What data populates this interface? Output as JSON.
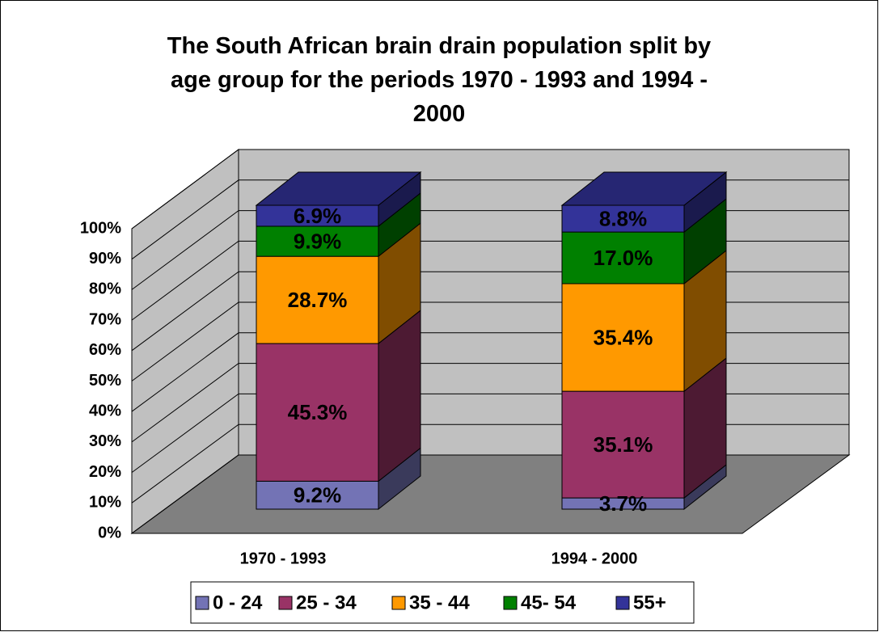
{
  "chart_data": {
    "type": "bar3d_stacked",
    "title": "The South African brain drain population split by age group for the periods 1970 - 1993 and 1994 - 2000",
    "categories": [
      "1970 - 1993",
      "1994 - 2000"
    ],
    "series": [
      {
        "name": "0 - 24",
        "color": "#7373b5",
        "values": [
          9.2,
          3.7
        ],
        "value_labels": [
          "9.2%",
          "3.7%"
        ]
      },
      {
        "name": "25 - 34",
        "color": "#993366",
        "values": [
          45.3,
          35.1
        ],
        "value_labels": [
          "45.3%",
          "35.1%"
        ]
      },
      {
        "name": "35 - 44",
        "color": "#ff9900",
        "values": [
          28.7,
          35.4
        ],
        "value_labels": [
          "28.7%",
          "35.4%"
        ]
      },
      {
        "name": "45- 54",
        "color": "#008000",
        "values": [
          9.9,
          17.0
        ],
        "value_labels": [
          "9.9%",
          "17.0%"
        ]
      },
      {
        "name": "55+",
        "color": "#333399",
        "values": [
          6.9,
          8.8
        ],
        "value_labels": [
          "6.9%",
          "8.8%"
        ]
      }
    ],
    "ylim": [
      0,
      100
    ],
    "yticks": [
      {
        "value": 0,
        "label": "0%"
      },
      {
        "value": 10,
        "label": "10%"
      },
      {
        "value": 20,
        "label": "20%"
      },
      {
        "value": 30,
        "label": "30%"
      },
      {
        "value": 40,
        "label": "40%"
      },
      {
        "value": 50,
        "label": "50%"
      },
      {
        "value": 60,
        "label": "60%"
      },
      {
        "value": 70,
        "label": "70%"
      },
      {
        "value": 80,
        "label": "80%"
      },
      {
        "value": 90,
        "label": "90%"
      },
      {
        "value": 100,
        "label": "100%"
      }
    ],
    "grid": true,
    "legend": "bottom"
  }
}
